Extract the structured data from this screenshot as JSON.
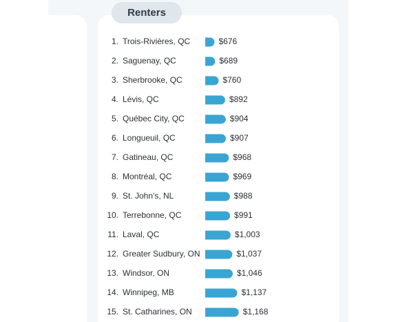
{
  "header": {
    "pill_label": "Renters"
  },
  "colors": {
    "bar": "#3aa5d3",
    "text": "#2b2f35",
    "pill_bg": "#dfe6ec",
    "background_band": "#f3f7fa"
  },
  "chart_data": {
    "type": "bar",
    "orientation": "horizontal",
    "title": "",
    "xlabel": "",
    "ylabel": "",
    "grid": false,
    "legend": "none",
    "xlim": [
      600,
      1200
    ],
    "ranks": [
      "1.",
      "2.",
      "3.",
      "4.",
      "5.",
      "6.",
      "7.",
      "8.",
      "9.",
      "10.",
      "11.",
      "12.",
      "13.",
      "14.",
      "15."
    ],
    "categories": [
      "Trois-Rivières, QC",
      "Saguenay, QC",
      "Sherbrooke, QC",
      "Lévis, QC",
      "Québec City, QC",
      "Longueuil, QC",
      "Gatineau, QC",
      "Montréal, QC",
      "St. John's, NL",
      "Terrebonne, QC",
      "Laval, QC",
      "Greater Sudbury, ON",
      "Windsor, ON",
      "Winnipeg, MB",
      "St. Catharines, ON"
    ],
    "values": [
      676,
      689,
      760,
      892,
      904,
      907,
      968,
      969,
      988,
      991,
      1003,
      1037,
      1046,
      1137,
      1168
    ],
    "value_labels": [
      "$676",
      "$689",
      "$760",
      "$892",
      "$904",
      "$907",
      "$968",
      "$969",
      "$988",
      "$991",
      "$1,003",
      "$1,037",
      "$1,046",
      "$1,137",
      "$1,168"
    ]
  }
}
